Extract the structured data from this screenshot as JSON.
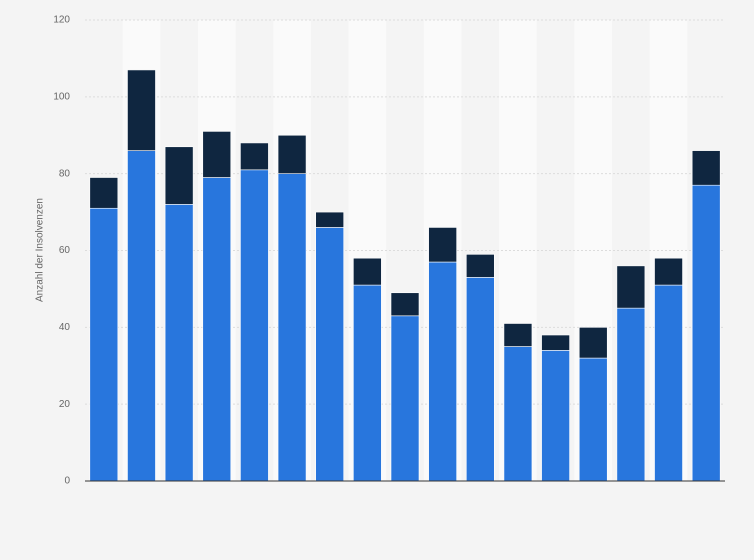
{
  "chart_data": {
    "type": "stacked_bar",
    "y_label": "Anzahl der Insolvenzen",
    "categories": [
      null,
      null,
      null,
      null,
      null,
      null,
      null,
      null,
      null,
      null,
      null,
      null,
      null,
      null,
      null,
      null,
      null
    ],
    "series": [
      {
        "color": "#2876dd",
        "values": [
          71,
          86,
          72,
          79,
          81,
          80,
          66,
          51,
          43,
          57,
          53,
          35,
          34,
          32,
          45,
          51,
          77
        ]
      },
      {
        "color": "#0f2640",
        "values": [
          8,
          21,
          15,
          12,
          7,
          10,
          4,
          7,
          6,
          9,
          6,
          6,
          4,
          8,
          11,
          7,
          9
        ]
      }
    ],
    "ylim": [
      0,
      120
    ],
    "yticks": [
      0,
      20,
      40,
      60,
      80,
      100,
      120
    ],
    "grid": true
  }
}
